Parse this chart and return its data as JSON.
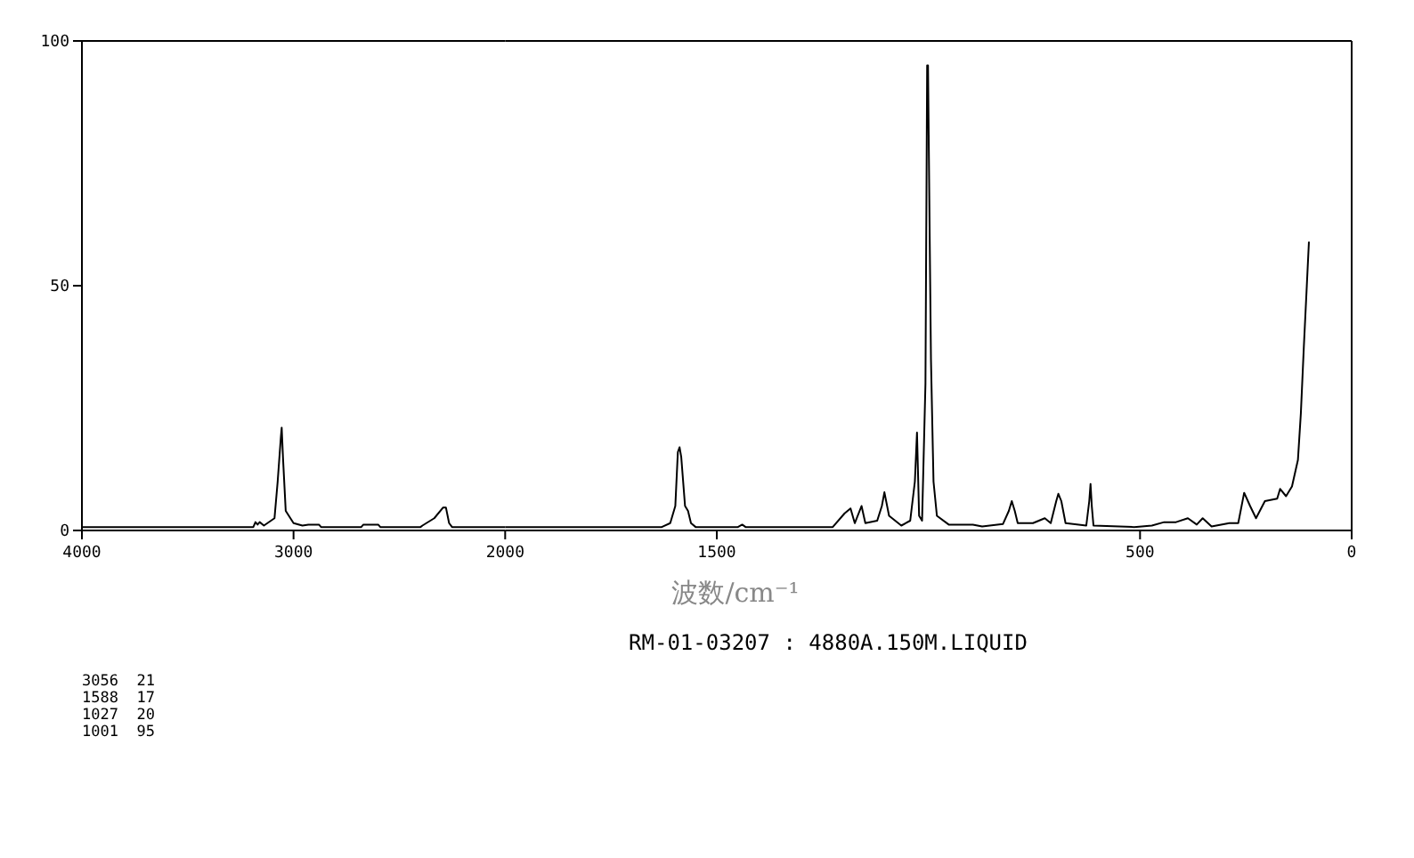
{
  "chart_data": [
    {
      "type": "line",
      "series": [
        {
          "color": "#000000",
          "x": [
            4000,
            3190,
            3180,
            3170,
            3160,
            3140,
            3090,
            3075,
            3060,
            3056,
            3050,
            3037,
            3000,
            2958,
            2930,
            2880,
            2870,
            2680,
            2670,
            2600,
            2590,
            2400,
            2391,
            2335,
            2293,
            2280,
            2265,
            2251,
            2000
          ],
          "values": [
            0.7,
            0.7,
            1.7,
            1.2,
            1.7,
            1.0,
            2.5,
            10,
            19,
            21,
            15,
            4,
            1.5,
            1.0,
            1.2,
            1.2,
            0.7,
            0.7,
            1.2,
            1.2,
            0.7,
            0.7,
            1.0,
            2.5,
            4.7,
            4.7,
            1.5,
            0.7,
            0.7
          ]
        }
      ],
      "xlim": [
        4000,
        2000
      ],
      "xticks": [
        4000,
        3000
      ],
      "ylim": [
        0,
        100
      ],
      "yticks": [
        0,
        50,
        100
      ],
      "grid": false,
      "marker": "none",
      "line_style": "solid"
    },
    {
      "type": "line",
      "xlabel": "波数/cm⁻¹",
      "annotations": [
        "RM-01-03207 : 4880A.150M.LIQUID",
        "3056  21",
        "1588  17",
        "1027  20",
        "1001  95"
      ],
      "series": [
        {
          "color": "#000000",
          "x": [
            2000,
            1630,
            1610,
            1598,
            1592,
            1588,
            1584,
            1575,
            1568,
            1561,
            1550,
            1450,
            1440,
            1432,
            1226,
            1198,
            1184,
            1174,
            1158,
            1149,
            1121,
            1110,
            1104,
            1093,
            1064,
            1043,
            1032,
            1027,
            1022,
            1015,
            1007,
            1003,
            1001,
            997,
            994,
            988,
            980,
            952,
            895,
            873,
            824,
            810,
            803,
            796,
            789,
            753,
            725,
            711,
            698,
            693,
            686,
            676,
            627,
            620,
            617,
            614,
            610,
            514,
            472,
            443,
            415,
            387,
            366,
            352,
            331,
            289,
            268,
            254,
            240,
            226,
            205,
            176,
            169,
            155,
            141,
            127,
            120,
            113,
            106,
            101
          ],
          "values": [
            0.7,
            0.7,
            1.5,
            5,
            16,
            17,
            15,
            5,
            4,
            1.5,
            0.7,
            0.7,
            1.2,
            0.7,
            0.7,
            3.5,
            4.5,
            1.5,
            5,
            1.5,
            2,
            5,
            7.8,
            3,
            1,
            2,
            10,
            20,
            3,
            2,
            30,
            95,
            95,
            60,
            35,
            10,
            3,
            1.2,
            1.2,
            0.8,
            1.3,
            4,
            6,
            4,
            1.5,
            1.5,
            2.5,
            1.5,
            6,
            7.5,
            6,
            1.5,
            1,
            6,
            9.5,
            5,
            1,
            0.7,
            1,
            1.7,
            1.7,
            2.5,
            1.2,
            2.5,
            0.8,
            1.5,
            1.5,
            7.7,
            5,
            2.5,
            6,
            6.5,
            8.5,
            7,
            9,
            14.4,
            24,
            37.5,
            50,
            59
          ]
        }
      ],
      "xlim": [
        2000,
        0
      ],
      "xticks": [
        2000,
        1500,
        500,
        0
      ],
      "ylim": [
        0,
        100
      ],
      "tick_labels": "x",
      "grid": false,
      "marker": "none",
      "line_style": "solid"
    }
  ]
}
